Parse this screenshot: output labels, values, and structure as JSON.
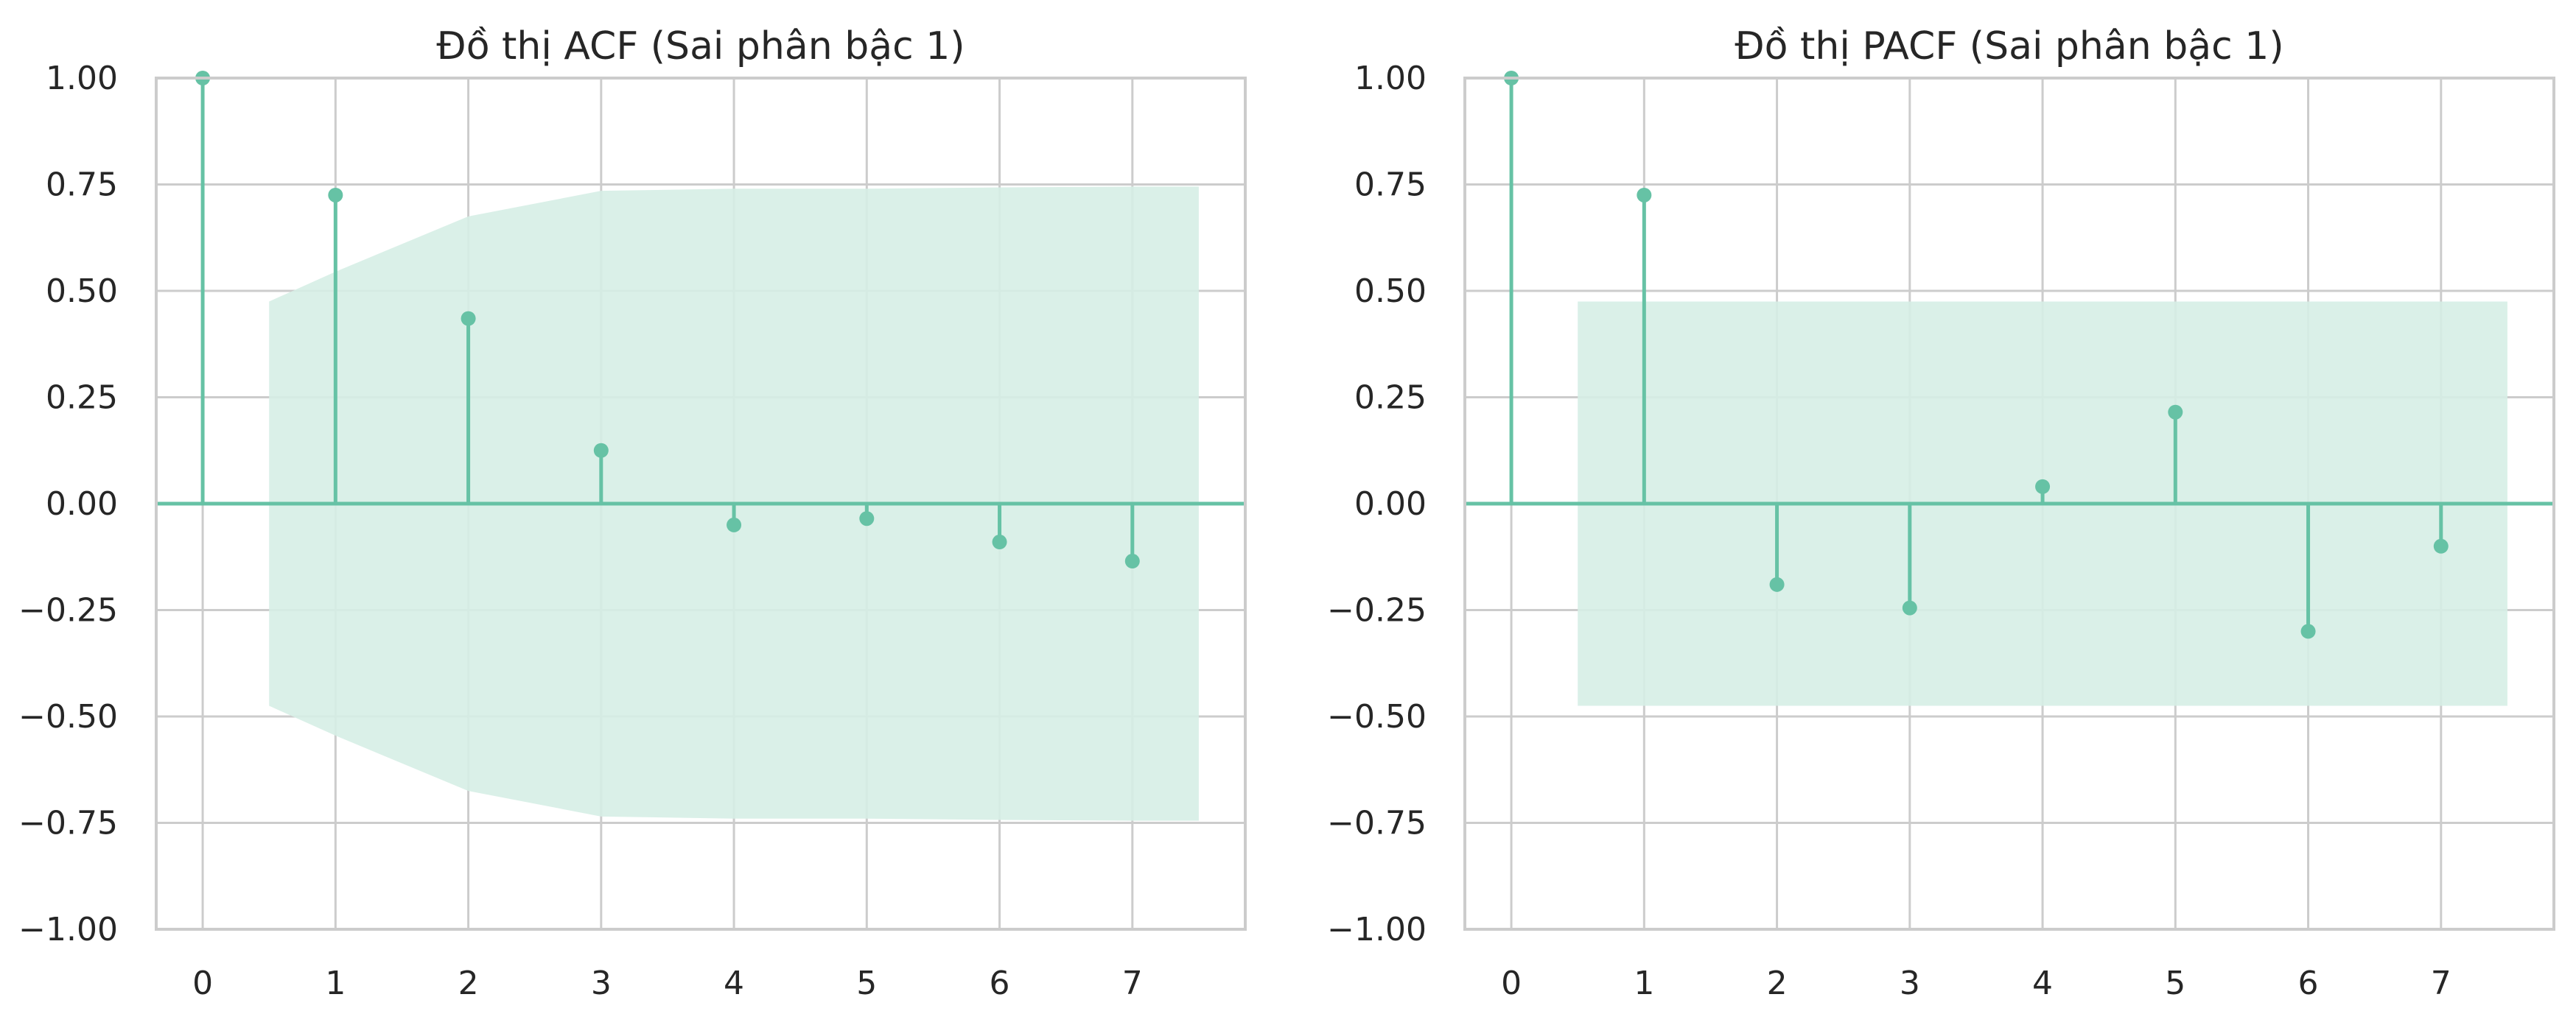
{
  "chart_data": [
    {
      "type": "stem",
      "title": "Đồ thị ACF (Sai phân bậc 1)",
      "xlabel": "",
      "ylabel": "",
      "xlim": [
        -0.35,
        7.85
      ],
      "ylim": [
        -1.0,
        1.0
      ],
      "x_ticks": [
        0,
        1,
        2,
        3,
        4,
        5,
        6,
        7
      ],
      "y_ticks": [
        -1.0,
        -0.75,
        -0.5,
        -0.25,
        0.0,
        0.25,
        0.5,
        0.75,
        1.0
      ],
      "y_tick_labels": [
        "−1.00",
        "−0.75",
        "−0.50",
        "−0.25",
        "0.00",
        "0.25",
        "0.50",
        "0.75",
        "1.00"
      ],
      "grid": true,
      "x": [
        0,
        1,
        2,
        3,
        4,
        5,
        6,
        7
      ],
      "values": [
        1.0,
        0.725,
        0.435,
        0.125,
        -0.05,
        -0.035,
        -0.09,
        -0.135
      ],
      "confidence_band": {
        "x": [
          0.5,
          1,
          2,
          3,
          4,
          5,
          6,
          7,
          7.5
        ],
        "upper": [
          0.475,
          0.545,
          0.675,
          0.735,
          0.74,
          0.74,
          0.743,
          0.745,
          0.745
        ]
      },
      "colors": {
        "stem": "#66c2a5",
        "band": "#d6eee5"
      }
    },
    {
      "type": "stem",
      "title": "Đồ thị PACF (Sai phân bậc 1)",
      "xlabel": "",
      "ylabel": "",
      "xlim": [
        -0.35,
        7.85
      ],
      "ylim": [
        -1.0,
        1.0
      ],
      "x_ticks": [
        0,
        1,
        2,
        3,
        4,
        5,
        6,
        7
      ],
      "y_ticks": [
        -1.0,
        -0.75,
        -0.5,
        -0.25,
        0.0,
        0.25,
        0.5,
        0.75,
        1.0
      ],
      "y_tick_labels": [
        "−1.00",
        "−0.75",
        "−0.50",
        "−0.25",
        "0.00",
        "0.25",
        "0.50",
        "0.75",
        "1.00"
      ],
      "grid": true,
      "x": [
        0,
        1,
        2,
        3,
        4,
        5,
        6,
        7
      ],
      "values": [
        1.0,
        0.725,
        -0.19,
        -0.245,
        0.04,
        0.215,
        -0.3,
        -0.1
      ],
      "confidence_band": {
        "x": [
          0.5,
          7.5
        ],
        "upper": [
          0.475,
          0.475
        ]
      },
      "colors": {
        "stem": "#66c2a5",
        "band": "#d6eee5"
      }
    }
  ]
}
